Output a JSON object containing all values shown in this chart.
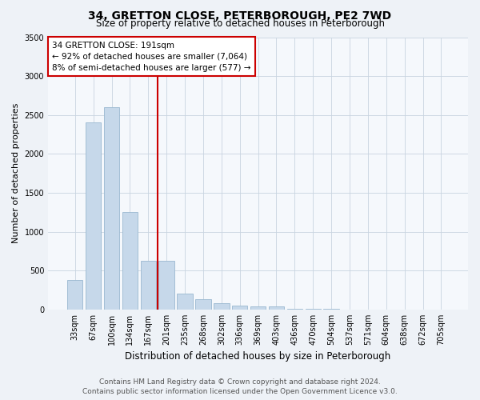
{
  "title": "34, GRETTON CLOSE, PETERBOROUGH, PE2 7WD",
  "subtitle": "Size of property relative to detached houses in Peterborough",
  "xlabel": "Distribution of detached houses by size in Peterborough",
  "ylabel": "Number of detached properties",
  "categories": [
    "33sqm",
    "67sqm",
    "100sqm",
    "134sqm",
    "167sqm",
    "201sqm",
    "235sqm",
    "268sqm",
    "302sqm",
    "336sqm",
    "369sqm",
    "403sqm",
    "436sqm",
    "470sqm",
    "504sqm",
    "537sqm",
    "571sqm",
    "604sqm",
    "638sqm",
    "672sqm",
    "705sqm"
  ],
  "values": [
    380,
    2400,
    2600,
    1250,
    630,
    630,
    200,
    130,
    80,
    55,
    45,
    45,
    5,
    5,
    5,
    0,
    0,
    0,
    0,
    0,
    0
  ],
  "bar_color": "#c6d8ea",
  "bar_edge_color": "#9ab8d0",
  "vline_color": "#cc0000",
  "vline_pos": 4.5,
  "annotation_text": "34 GRETTON CLOSE: 191sqm\n← 92% of detached houses are smaller (7,064)\n8% of semi-detached houses are larger (577) →",
  "annotation_box_color": "#ffffff",
  "annotation_box_edge": "#cc0000",
  "ylim": [
    0,
    3500
  ],
  "yticks": [
    0,
    500,
    1000,
    1500,
    2000,
    2500,
    3000,
    3500
  ],
  "footer1": "Contains HM Land Registry data © Crown copyright and database right 2024.",
  "footer2": "Contains public sector information licensed under the Open Government Licence v3.0.",
  "bg_color": "#eef2f7",
  "plot_bg_color": "#f5f8fc",
  "grid_color": "#c8d4e0",
  "title_fontsize": 10,
  "subtitle_fontsize": 8.5,
  "xlabel_fontsize": 8.5,
  "ylabel_fontsize": 8,
  "tick_fontsize": 7,
  "footer_fontsize": 6.5
}
